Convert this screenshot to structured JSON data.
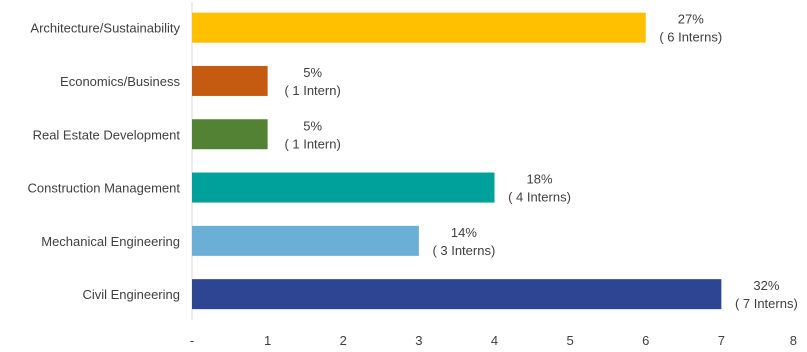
{
  "chart_data": {
    "type": "bar",
    "orientation": "horizontal",
    "categories": [
      "Architecture/Sustainability",
      "Economics/Business",
      "Real Estate Development",
      "Construction Management",
      "Mechanical Engineering",
      "Civil Engineering"
    ],
    "values": [
      6,
      1,
      1,
      4,
      3,
      7
    ],
    "data_labels": [
      [
        "27%",
        "( 6 Interns)"
      ],
      [
        "5%",
        "( 1 Intern)"
      ],
      [
        "5%",
        "( 1 Intern)"
      ],
      [
        "18%",
        "( 4 Interns)"
      ],
      [
        "14%",
        "( 3 Interns)"
      ],
      [
        "32%",
        "( 7 Interns)"
      ]
    ],
    "colors": [
      "#ffc000",
      "#c55a11",
      "#548235",
      "#00a19a",
      "#6baed6",
      "#2e4593"
    ],
    "xticks": [
      "-",
      "1",
      "2",
      "3",
      "4",
      "5",
      "6",
      "7",
      "8"
    ],
    "xlim": [
      0,
      8
    ],
    "grid": false,
    "legend": "none"
  }
}
